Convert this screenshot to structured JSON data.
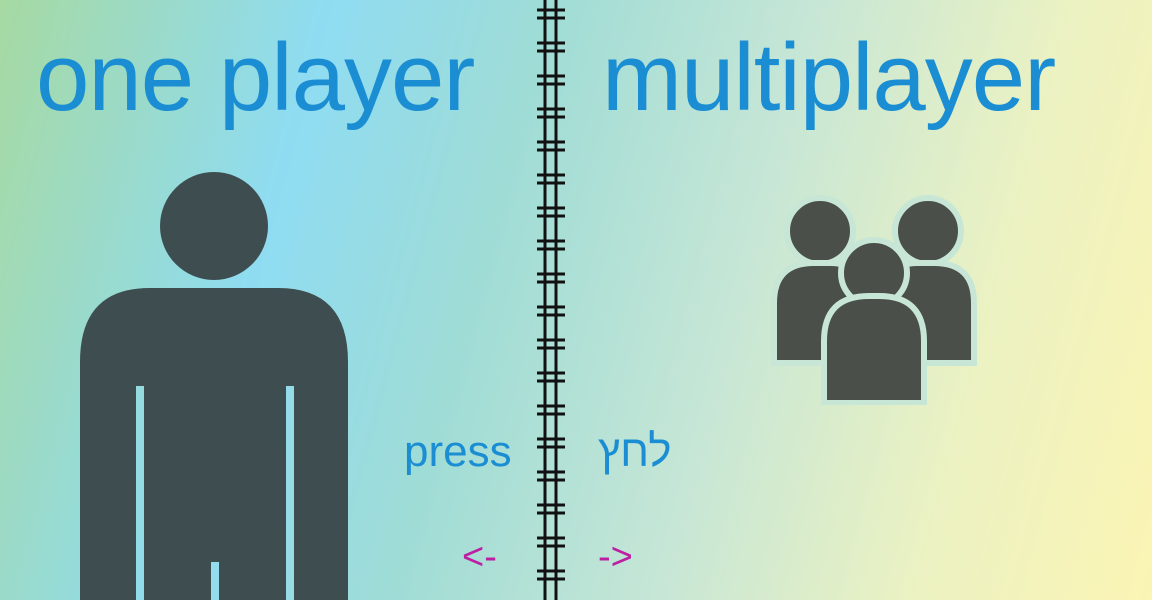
{
  "titles": {
    "one_player": "one player",
    "multiplayer": "multiplayer"
  },
  "prompt": {
    "press_en": "press",
    "press_he": "לחץ",
    "arrow_left": "<-",
    "arrow_right": "->"
  },
  "icons": {
    "single": "person-icon",
    "group": "group-icon"
  },
  "colors": {
    "title": "#1b8ed3",
    "arrow": "#bd1fa3",
    "icon": "#3e4e50",
    "divider": "#111111"
  }
}
